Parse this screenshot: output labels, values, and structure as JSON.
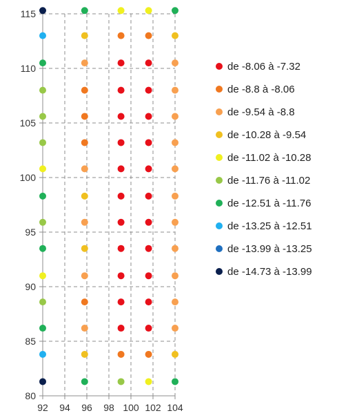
{
  "chart_data": {
    "type": "scatter",
    "xlim": [
      92,
      104
    ],
    "ylim": [
      80,
      115
    ],
    "x_ticks": [
      92,
      94,
      96,
      98,
      100,
      102,
      104
    ],
    "y_ticks": [
      80,
      85,
      90,
      95,
      100,
      105,
      110,
      115
    ],
    "grid": true,
    "legend_position": "right",
    "series": [
      {
        "name": "de -8.06 à -7.32",
        "color": "#e8101a",
        "points": [
          [
            99.1,
            110.5
          ],
          [
            101.6,
            110.5
          ],
          [
            99.1,
            108
          ],
          [
            101.6,
            108
          ],
          [
            99.1,
            105.6
          ],
          [
            101.6,
            105.6
          ],
          [
            99.1,
            103.2
          ],
          [
            101.6,
            103.2
          ],
          [
            99.1,
            100.8
          ],
          [
            101.6,
            100.8
          ],
          [
            99.1,
            98.3
          ],
          [
            101.6,
            98.3
          ],
          [
            99.1,
            95.9
          ],
          [
            101.6,
            95.9
          ],
          [
            99.1,
            93.5
          ],
          [
            101.6,
            93.5
          ],
          [
            99.1,
            91.0
          ],
          [
            101.6,
            91.0
          ],
          [
            99.1,
            88.6
          ],
          [
            101.6,
            88.6
          ],
          [
            99.1,
            86.2
          ],
          [
            101.6,
            86.2
          ]
        ]
      },
      {
        "name": "de -8.8 à -8.06",
        "color": "#f07820",
        "points": [
          [
            99.1,
            113.0
          ],
          [
            101.6,
            113.0
          ],
          [
            95.8,
            108
          ],
          [
            95.8,
            105.6
          ],
          [
            95.8,
            103.2
          ],
          [
            95.8,
            88.6
          ],
          [
            99.1,
            83.8
          ],
          [
            101.6,
            83.8
          ]
        ]
      },
      {
        "name": "de -9.54 à -8.8",
        "color": "#f8a050",
        "points": [
          [
            95.8,
            110.5
          ],
          [
            104,
            110.5
          ],
          [
            104,
            108
          ],
          [
            104,
            105.6
          ],
          [
            104,
            103.2
          ],
          [
            95.8,
            100.8
          ],
          [
            104,
            100.8
          ],
          [
            104,
            98.3
          ],
          [
            95.8,
            95.9
          ],
          [
            104,
            95.9
          ],
          [
            104,
            93.5
          ],
          [
            95.8,
            91.0
          ],
          [
            104,
            91.0
          ],
          [
            104,
            88.6
          ],
          [
            95.8,
            86.2
          ],
          [
            104,
            86.2
          ]
        ]
      },
      {
        "name": "de -10.28 à -9.54",
        "color": "#f0c020",
        "points": [
          [
            95.8,
            113.0
          ],
          [
            104,
            113.0
          ],
          [
            95.8,
            98.3
          ],
          [
            95.8,
            93.5
          ],
          [
            95.8,
            83.8
          ],
          [
            104,
            83.8
          ]
        ]
      },
      {
        "name": "de -11.02 à -10.28",
        "color": "#f0f020",
        "points": [
          [
            99.1,
            115.3
          ],
          [
            101.6,
            115.3
          ],
          [
            92,
            100.8
          ],
          [
            92,
            91.0
          ],
          [
            101.6,
            81.3
          ]
        ]
      },
      {
        "name": "de -11.76 à -11.02",
        "color": "#98c848",
        "points": [
          [
            92,
            108
          ],
          [
            92,
            105.6
          ],
          [
            92,
            103.2
          ],
          [
            92,
            95.9
          ],
          [
            92,
            88.6
          ],
          [
            99.1,
            81.3
          ]
        ]
      },
      {
        "name": "de -12.51 à -11.76",
        "color": "#20b058",
        "points": [
          [
            95.8,
            115.3
          ],
          [
            104,
            115.3
          ],
          [
            92,
            110.5
          ],
          [
            92,
            98.3
          ],
          [
            92,
            93.5
          ],
          [
            92,
            86.2
          ],
          [
            95.8,
            81.3
          ],
          [
            104,
            81.3
          ]
        ]
      },
      {
        "name": "de -13.25 à -12.51",
        "color": "#20b0f0",
        "points": [
          [
            92,
            113.0
          ],
          [
            92,
            83.8
          ]
        ]
      },
      {
        "name": "de -13.99 à -13.25",
        "color": "#1f6fbf",
        "points": []
      },
      {
        "name": "de -14.73 à -13.99",
        "color": "#0a1f4d",
        "points": [
          [
            92,
            115.3
          ],
          [
            92,
            81.3
          ]
        ]
      }
    ]
  }
}
